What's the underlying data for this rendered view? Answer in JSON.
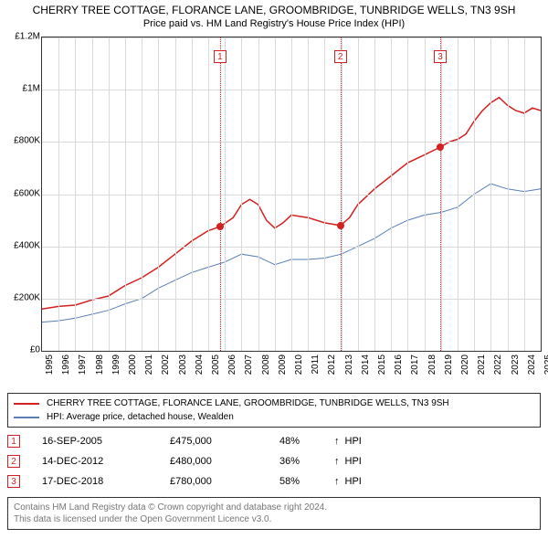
{
  "title": "CHERRY TREE COTTAGE, FLORANCE LANE, GROOMBRIDGE, TUNBRIDGE WELLS, TN3 9SH",
  "subtitle": "Price paid vs. HM Land Registry's House Price Index (HPI)",
  "chart": {
    "type": "line",
    "x_start_year": 1995,
    "x_end_year": 2025,
    "ylim": [
      0,
      1200000
    ],
    "ytick_step": 200000,
    "ytick_labels": [
      "£0",
      "£200K",
      "£400K",
      "£600K",
      "£800K",
      "£1M",
      "£1.2M"
    ],
    "xtick_years": [
      1995,
      1996,
      1997,
      1998,
      1999,
      2000,
      2001,
      2002,
      2003,
      2004,
      2005,
      2006,
      2007,
      2008,
      2009,
      2010,
      2011,
      2012,
      2013,
      2014,
      2015,
      2016,
      2017,
      2018,
      2019,
      2020,
      2021,
      2022,
      2023,
      2024,
      2025
    ],
    "grid_color": "#d9d9d9",
    "background_color": "#ffffff",
    "series": [
      {
        "name": "property",
        "color": "#d42020",
        "width": 1.5,
        "points": [
          [
            1995.0,
            160000
          ],
          [
            1996.0,
            170000
          ],
          [
            1997.0,
            175000
          ],
          [
            1998.0,
            195000
          ],
          [
            1999.0,
            210000
          ],
          [
            2000.0,
            250000
          ],
          [
            2001.0,
            280000
          ],
          [
            2002.0,
            320000
          ],
          [
            2003.0,
            370000
          ],
          [
            2004.0,
            420000
          ],
          [
            2005.0,
            460000
          ],
          [
            2005.7,
            475000
          ],
          [
            2006.5,
            510000
          ],
          [
            2007.0,
            560000
          ],
          [
            2007.5,
            580000
          ],
          [
            2008.0,
            560000
          ],
          [
            2008.5,
            500000
          ],
          [
            2009.0,
            470000
          ],
          [
            2009.5,
            490000
          ],
          [
            2010.0,
            520000
          ],
          [
            2011.0,
            510000
          ],
          [
            2012.0,
            490000
          ],
          [
            2012.95,
            480000
          ],
          [
            2013.5,
            510000
          ],
          [
            2014.0,
            560000
          ],
          [
            2015.0,
            620000
          ],
          [
            2016.0,
            670000
          ],
          [
            2017.0,
            720000
          ],
          [
            2018.0,
            750000
          ],
          [
            2018.96,
            780000
          ],
          [
            2019.5,
            800000
          ],
          [
            2020.0,
            810000
          ],
          [
            2020.5,
            830000
          ],
          [
            2021.0,
            880000
          ],
          [
            2021.5,
            920000
          ],
          [
            2022.0,
            950000
          ],
          [
            2022.5,
            970000
          ],
          [
            2023.0,
            940000
          ],
          [
            2023.5,
            920000
          ],
          [
            2024.0,
            910000
          ],
          [
            2024.5,
            930000
          ],
          [
            2025.0,
            920000
          ]
        ]
      },
      {
        "name": "hpi",
        "color": "#5a7fb5",
        "width": 1,
        "points": [
          [
            1995.0,
            110000
          ],
          [
            1996.0,
            115000
          ],
          [
            1997.0,
            125000
          ],
          [
            1998.0,
            140000
          ],
          [
            1999.0,
            155000
          ],
          [
            2000.0,
            180000
          ],
          [
            2001.0,
            200000
          ],
          [
            2002.0,
            240000
          ],
          [
            2003.0,
            270000
          ],
          [
            2004.0,
            300000
          ],
          [
            2005.0,
            320000
          ],
          [
            2006.0,
            340000
          ],
          [
            2007.0,
            370000
          ],
          [
            2008.0,
            360000
          ],
          [
            2009.0,
            330000
          ],
          [
            2010.0,
            350000
          ],
          [
            2011.0,
            350000
          ],
          [
            2012.0,
            355000
          ],
          [
            2013.0,
            370000
          ],
          [
            2014.0,
            400000
          ],
          [
            2015.0,
            430000
          ],
          [
            2016.0,
            470000
          ],
          [
            2017.0,
            500000
          ],
          [
            2018.0,
            520000
          ],
          [
            2019.0,
            530000
          ],
          [
            2020.0,
            550000
          ],
          [
            2021.0,
            600000
          ],
          [
            2022.0,
            640000
          ],
          [
            2023.0,
            620000
          ],
          [
            2024.0,
            610000
          ],
          [
            2025.0,
            620000
          ]
        ]
      }
    ],
    "events": [
      {
        "n": "1",
        "year": 2005.71,
        "price": 475000,
        "color": "#d42020"
      },
      {
        "n": "2",
        "year": 2012.95,
        "price": 480000,
        "color": "#d42020"
      },
      {
        "n": "3",
        "year": 2018.96,
        "price": 780000,
        "color": "#d42020"
      }
    ]
  },
  "legend": {
    "items": [
      {
        "color": "#d42020",
        "label": "CHERRY TREE COTTAGE, FLORANCE LANE, GROOMBRIDGE, TUNBRIDGE WELLS, TN3 9SH"
      },
      {
        "color": "#5a7fb5",
        "label": "HPI: Average price, detached house, Wealden"
      }
    ]
  },
  "event_rows": [
    {
      "n": "1",
      "color": "#d42020",
      "date": "16-SEP-2005",
      "price": "£475,000",
      "pct": "48%",
      "arrow": "↑",
      "tag": "HPI"
    },
    {
      "n": "2",
      "color": "#d42020",
      "date": "14-DEC-2012",
      "price": "£480,000",
      "pct": "36%",
      "arrow": "↑",
      "tag": "HPI"
    },
    {
      "n": "3",
      "color": "#d42020",
      "date": "17-DEC-2018",
      "price": "£780,000",
      "pct": "58%",
      "arrow": "↑",
      "tag": "HPI"
    }
  ],
  "footer": {
    "line1": "Contains HM Land Registry data © Crown copyright and database right 2024.",
    "line2": "This data is licensed under the Open Government Licence v3.0."
  }
}
